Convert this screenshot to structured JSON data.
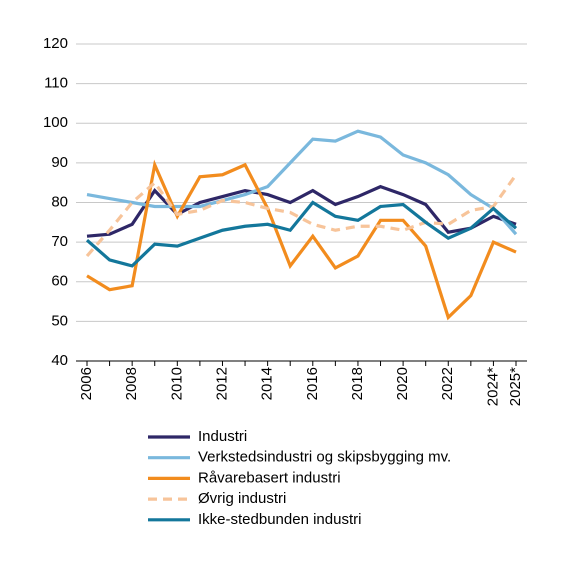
{
  "chart_data": {
    "type": "line",
    "categories": [
      "2006",
      null,
      "2008",
      null,
      "2010",
      null,
      "2012",
      null,
      "2014",
      null,
      "2016",
      null,
      "2018",
      null,
      "2020",
      null,
      "2022",
      null,
      "2024*",
      "2025*"
    ],
    "series": [
      {
        "name": "Industri",
        "color": "#2e2767",
        "values": [
          71.5,
          72,
          74.5,
          83,
          77,
          80,
          81.5,
          83,
          82,
          80,
          83,
          79.5,
          81.5,
          84,
          82,
          79.5,
          72.5,
          73.5,
          76.5,
          74.5
        ]
      },
      {
        "name": "Verkstedsindustri og skipsbygging mv.",
        "color": "#7ab8dd",
        "values": [
          82,
          81,
          80,
          79,
          79,
          79,
          80.5,
          82,
          84,
          90,
          96,
          95.5,
          98,
          96.5,
          92,
          90,
          87,
          82,
          78.5,
          72
        ]
      },
      {
        "name": "Råvarebasert industri",
        "color": "#f28c1e",
        "values": [
          61.5,
          58,
          59,
          89.5,
          76.5,
          86.5,
          87,
          89.5,
          78.5,
          64,
          71.5,
          63.5,
          66.5,
          75.5,
          75.5,
          69,
          51,
          56.5,
          70,
          67.5
        ]
      },
      {
        "name": "Øvrig industri",
        "color": "#f7c49a",
        "dashed": true,
        "values": [
          66.5,
          73,
          80,
          85,
          77,
          78,
          80.5,
          80,
          78.5,
          77.5,
          74.5,
          73,
          74,
          74,
          73,
          75,
          74.5,
          78,
          79,
          87
        ]
      },
      {
        "name": "Ikke-stedbunden industri",
        "color": "#13779b",
        "values": [
          70.5,
          65.5,
          64,
          69.5,
          69,
          71,
          73,
          74,
          74.5,
          73,
          80,
          76.5,
          75.5,
          79,
          79.5,
          75,
          71,
          73.5,
          78.5,
          73.5
        ]
      }
    ],
    "ylim": [
      40,
      120
    ],
    "yticks": [
      40,
      50,
      60,
      70,
      80,
      90,
      100,
      110,
      120
    ],
    "grid": true
  }
}
